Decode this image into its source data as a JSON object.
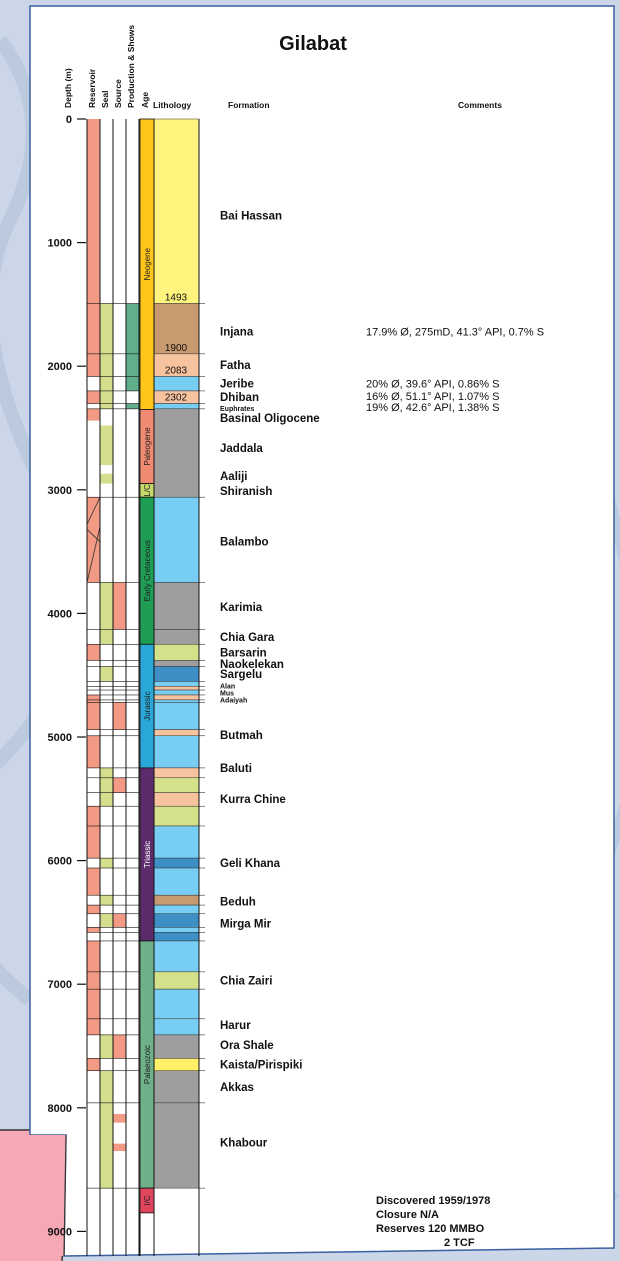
{
  "title": "Gilabat",
  "colors": {
    "reservoir": "#f39a85",
    "seal": "#d5de8c",
    "source": "#f39a85",
    "shows": "#5fb08b",
    "neogene": "#ffc61a",
    "paleogene": "#f08a72",
    "lc": "#c8d86a",
    "early_cretaceous": "#1e9e55",
    "jurassic": "#29a8d8",
    "triassic": "#5b2b6b",
    "palaeozoic": "#6fb08a",
    "ic": "#e0455e",
    "sand": "#fff47e",
    "brown": "#c79a6f",
    "light_orange": "#f7c29e",
    "light_blue": "#78cdf2",
    "mid_blue": "#3f8fc7",
    "grey": "#9e9e9e",
    "olive": "#d4e08a",
    "yellow": "#fff06a"
  },
  "column_headers": {
    "depth": "Depth (m)",
    "reservoir": "Reservoir",
    "seal": "Seal",
    "source": "Source",
    "shows": "Production & Shows",
    "age": "Age",
    "lithology": "Lithology",
    "formation": "Formation",
    "comments": "Comments"
  },
  "depth_axis": {
    "min": 0,
    "max": 9000,
    "ticks": [
      "0",
      "1000",
      "2000",
      "3000",
      "4000",
      "5000",
      "6000",
      "7000",
      "8000",
      "9000"
    ]
  },
  "ages": [
    {
      "label": "Neogene",
      "top": 0,
      "base": 2350,
      "color_key": "neogene"
    },
    {
      "label": "Paleogene",
      "top": 2350,
      "base": 2950,
      "color_key": "paleogene"
    },
    {
      "label": "L/C",
      "top": 2950,
      "base": 3060,
      "color_key": "lc"
    },
    {
      "label": "Early Cretaceous",
      "top": 3060,
      "base": 4250,
      "color_key": "early_cretaceous"
    },
    {
      "label": "Jurassic",
      "top": 4250,
      "base": 5250,
      "color_key": "jurassic"
    },
    {
      "label": "Triassic",
      "top": 5250,
      "base": 6650,
      "color_key": "triassic"
    },
    {
      "label": "Palaeozoic",
      "top": 6650,
      "base": 8650,
      "color_key": "palaeozoic"
    },
    {
      "label": "I/C",
      "top": 8650,
      "base": 8850,
      "color_key": "ic"
    }
  ],
  "lithology": [
    {
      "top": 0,
      "base": 1493,
      "color_key": "sand"
    },
    {
      "top": 1493,
      "base": 1900,
      "color_key": "brown"
    },
    {
      "top": 1900,
      "base": 2083,
      "color_key": "light_orange"
    },
    {
      "top": 2083,
      "base": 2200,
      "color_key": "light_blue"
    },
    {
      "top": 2200,
      "base": 2302,
      "color_key": "light_orange"
    },
    {
      "top": 2302,
      "base": 2345,
      "color_key": "light_blue"
    },
    {
      "top": 2345,
      "base": 3060,
      "color_key": "grey"
    },
    {
      "top": 3060,
      "base": 3750,
      "color_key": "light_blue"
    },
    {
      "top": 3750,
      "base": 4130,
      "color_key": "grey"
    },
    {
      "top": 4130,
      "base": 4250,
      "color_key": "grey"
    },
    {
      "top": 4250,
      "base": 4380,
      "color_key": "olive"
    },
    {
      "top": 4380,
      "base": 4430,
      "color_key": "grey"
    },
    {
      "top": 4430,
      "base": 4550,
      "color_key": "mid_blue"
    },
    {
      "top": 4550,
      "base": 4590,
      "color_key": "light_blue"
    },
    {
      "top": 4590,
      "base": 4620,
      "color_key": "light_orange"
    },
    {
      "top": 4620,
      "base": 4660,
      "color_key": "light_blue"
    },
    {
      "top": 4660,
      "base": 4700,
      "color_key": "light_orange"
    },
    {
      "top": 4700,
      "base": 4720,
      "color_key": "light_blue"
    },
    {
      "top": 4720,
      "base": 4940,
      "color_key": "light_blue"
    },
    {
      "top": 4940,
      "base": 4990,
      "color_key": "light_orange"
    },
    {
      "top": 4990,
      "base": 5250,
      "color_key": "light_blue"
    },
    {
      "top": 5250,
      "base": 5330,
      "color_key": "light_orange"
    },
    {
      "top": 5330,
      "base": 5450,
      "color_key": "olive"
    },
    {
      "top": 5450,
      "base": 5560,
      "color_key": "light_orange"
    },
    {
      "top": 5560,
      "base": 5720,
      "color_key": "olive"
    },
    {
      "top": 5720,
      "base": 5980,
      "color_key": "light_blue"
    },
    {
      "top": 5980,
      "base": 6060,
      "color_key": "mid_blue"
    },
    {
      "top": 6060,
      "base": 6280,
      "color_key": "light_blue"
    },
    {
      "top": 6280,
      "base": 6360,
      "color_key": "brown"
    },
    {
      "top": 6360,
      "base": 6430,
      "color_key": "light_blue"
    },
    {
      "top": 6430,
      "base": 6540,
      "color_key": "mid_blue"
    },
    {
      "top": 6540,
      "base": 6580,
      "color_key": "light_blue"
    },
    {
      "top": 6580,
      "base": 6650,
      "color_key": "mid_blue"
    },
    {
      "top": 6650,
      "base": 6900,
      "color_key": "light_blue"
    },
    {
      "top": 6900,
      "base": 7040,
      "color_key": "olive"
    },
    {
      "top": 7040,
      "base": 7280,
      "color_key": "light_blue"
    },
    {
      "top": 7280,
      "base": 7410,
      "color_key": "light_blue"
    },
    {
      "top": 7410,
      "base": 7600,
      "color_key": "grey"
    },
    {
      "top": 7600,
      "base": 7700,
      "color_key": "yellow"
    },
    {
      "top": 7700,
      "base": 7960,
      "color_key": "grey"
    },
    {
      "top": 7960,
      "base": 8650,
      "color_key": "grey"
    }
  ],
  "lith_depth_labels": [
    {
      "text": "1493",
      "depth": 1493
    },
    {
      "text": "1900",
      "depth": 1900
    },
    {
      "text": "2083",
      "depth": 2083
    },
    {
      "text": "2302",
      "depth": 2302
    }
  ],
  "reservoir_blocks": [
    [
      0,
      1900
    ],
    [
      1900,
      2083
    ],
    [
      2200,
      2302
    ],
    [
      2345,
      2440
    ],
    [
      3060,
      3750
    ],
    [
      4250,
      4380
    ],
    [
      4660,
      4720
    ],
    [
      4720,
      4940
    ],
    [
      4990,
      5250
    ],
    [
      5560,
      5720
    ],
    [
      5720,
      5980
    ],
    [
      6060,
      6280
    ],
    [
      6360,
      6430
    ],
    [
      6540,
      6580
    ],
    [
      6650,
      6900
    ],
    [
      6900,
      7040
    ],
    [
      7040,
      7280
    ],
    [
      7280,
      7410
    ],
    [
      7600,
      7700
    ]
  ],
  "seal_blocks": [
    [
      1493,
      1900
    ],
    [
      1900,
      2083
    ],
    [
      2083,
      2200
    ],
    [
      2200,
      2302
    ],
    [
      2302,
      2345
    ],
    [
      2480,
      2800
    ],
    [
      2870,
      2950
    ],
    [
      3750,
      4130
    ],
    [
      4130,
      4250
    ],
    [
      4430,
      4550
    ],
    [
      5250,
      5330
    ],
    [
      5330,
      5450
    ],
    [
      5450,
      5560
    ],
    [
      5980,
      6060
    ],
    [
      6280,
      6360
    ],
    [
      6430,
      6540
    ],
    [
      7410,
      7600
    ],
    [
      7700,
      7960
    ],
    [
      7960,
      8650
    ]
  ],
  "source_blocks": [
    [
      3750,
      4130
    ],
    [
      4720,
      4940
    ],
    [
      5330,
      5450
    ],
    [
      6430,
      6540
    ],
    [
      7410,
      7600
    ],
    [
      8050,
      8120
    ],
    [
      8290,
      8350
    ]
  ],
  "shows_blocks": [
    [
      1493,
      2200
    ],
    [
      2302,
      2345
    ]
  ],
  "formations": [
    {
      "name": "Bai Hassan",
      "depth": 780
    },
    {
      "name": "Injana",
      "depth": 1720
    },
    {
      "name": "Fatha",
      "depth": 1990
    },
    {
      "name": "Jeribe",
      "depth": 2140
    },
    {
      "name": "Dhiban",
      "depth": 2250
    },
    {
      "name": "Euphrates",
      "depth": 2330
    },
    {
      "name": "Basinal Oligocene",
      "depth": 2420
    },
    {
      "name": "Jaddala",
      "depth": 2660
    },
    {
      "name": "Aaliji",
      "depth": 2890
    },
    {
      "name": "Shiranish",
      "depth": 3010
    },
    {
      "name": "Balambo",
      "depth": 3420
    },
    {
      "name": "Karimia",
      "depth": 3950
    },
    {
      "name": "Chia Gara",
      "depth": 4190
    },
    {
      "name": "Barsarin",
      "depth": 4315
    },
    {
      "name": "Naokelekan",
      "depth": 4410
    },
    {
      "name": "Sargelu",
      "depth": 4490
    },
    {
      "name": "Alan",
      "depth": 4575
    },
    {
      "name": "Mus",
      "depth": 4630
    },
    {
      "name": "Adaiyah",
      "depth": 4690
    },
    {
      "name": "Butmah",
      "depth": 4985
    },
    {
      "name": "Baluti",
      "depth": 5250
    },
    {
      "name": "Kurra Chine",
      "depth": 5500
    },
    {
      "name": "Geli Khana",
      "depth": 6020
    },
    {
      "name": "Beduh",
      "depth": 6330
    },
    {
      "name": "Mirga Mir",
      "depth": 6510
    },
    {
      "name": "Chia Zairi",
      "depth": 6970
    },
    {
      "name": "Harur",
      "depth": 7330
    },
    {
      "name": "Ora Shale",
      "depth": 7490
    },
    {
      "name": "Kaista/Pirispiki",
      "depth": 7650
    },
    {
      "name": "Akkas",
      "depth": 7830
    },
    {
      "name": "Khabour",
      "depth": 8280
    }
  ],
  "comments": [
    {
      "text": "17.9% Ø, 275mD, 41.3° API, 0.7% S",
      "depth": 1720
    },
    {
      "text": "20% Ø, 39.6° API, 0.86% S",
      "depth": 2140
    },
    {
      "text": "16% Ø, 51.1° API, 1.07% S",
      "depth": 2240
    },
    {
      "text": "19% Ø, 42.6° API, 1.38% S",
      "depth": 2330
    }
  ],
  "discovery": [
    "Discovered 1959/1978",
    "Closure N/A",
    "Reserves 120 MMBO",
    "2 TCF"
  ]
}
